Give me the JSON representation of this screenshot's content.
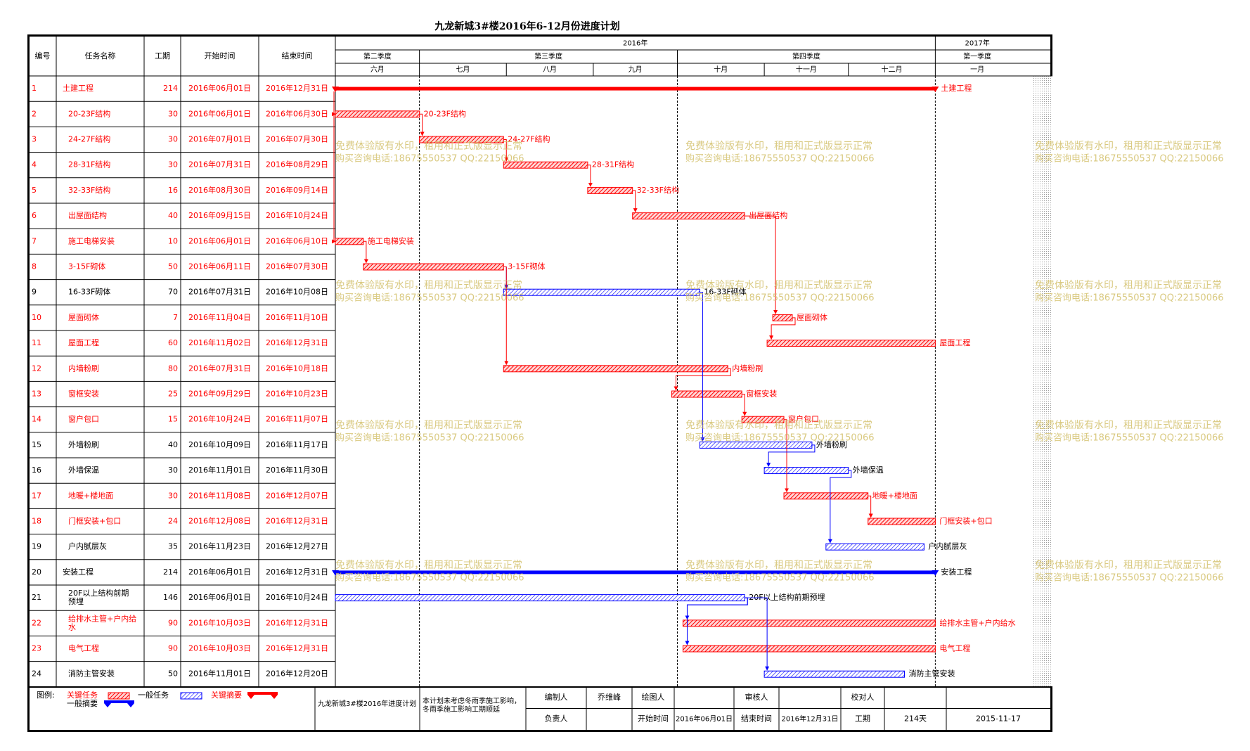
{
  "title": "九龙新城3#楼2016年6-12月份进度计划",
  "columns": {
    "id": "编号",
    "name": "任务名称",
    "duration": "工期",
    "start": "开始时间",
    "end": "结束时间"
  },
  "timeline": {
    "start": "2016-06-01",
    "end": "2017-01-31",
    "years": [
      {
        "label": "2016年",
        "from": "2016-06-01",
        "to": "2017-01-01"
      },
      {
        "label": "2017年",
        "from": "2017-01-01",
        "to": "2017-01-31"
      }
    ],
    "quarters": [
      {
        "label": "第二季度",
        "from": "2016-06-01",
        "to": "2016-07-01"
      },
      {
        "label": "第三季度",
        "from": "2016-07-01",
        "to": "2016-10-01"
      },
      {
        "label": "第四季度",
        "from": "2016-10-01",
        "to": "2017-01-01"
      },
      {
        "label": "第一季度",
        "from": "2017-01-01",
        "to": "2017-01-31"
      }
    ],
    "months": [
      {
        "label": "六月",
        "from": "2016-06-01",
        "to": "2016-07-01"
      },
      {
        "label": "七月",
        "from": "2016-07-01",
        "to": "2016-08-01"
      },
      {
        "label": "八月",
        "from": "2016-08-01",
        "to": "2016-09-01"
      },
      {
        "label": "九月",
        "from": "2016-09-01",
        "to": "2016-10-01"
      },
      {
        "label": "十月",
        "from": "2016-10-01",
        "to": "2016-11-01"
      },
      {
        "label": "十一月",
        "from": "2016-11-01",
        "to": "2016-12-01"
      },
      {
        "label": "十二月",
        "from": "2016-12-01",
        "to": "2017-01-01"
      },
      {
        "label": "一月",
        "from": "2017-01-01",
        "to": "2017-01-31"
      }
    ],
    "quarter_dividers": [
      "2016-07-01",
      "2016-10-01",
      "2017-01-01"
    ]
  },
  "tasks": [
    {
      "id": "1",
      "name": "土建工程",
      "duration": "214",
      "start": "2016年06月01日",
      "end": "2016年12月31日",
      "from": "2016-06-01",
      "to": "2016-12-31",
      "type": "summary",
      "critical": true,
      "indent": false,
      "bar_label": "土建工程"
    },
    {
      "id": "2",
      "name": "20-23F结构",
      "duration": "30",
      "start": "2016年06月01日",
      "end": "2016年06月30日",
      "from": "2016-06-01",
      "to": "2016-06-30",
      "type": "task",
      "critical": true,
      "indent": true,
      "bar_label": "20-23F结构"
    },
    {
      "id": "3",
      "name": "24-27F结构",
      "duration": "30",
      "start": "2016年07月01日",
      "end": "2016年07月30日",
      "from": "2016-07-01",
      "to": "2016-07-30",
      "type": "task",
      "critical": true,
      "indent": true,
      "bar_label": "24-27F结构"
    },
    {
      "id": "4",
      "name": "28-31F结构",
      "duration": "30",
      "start": "2016年07月31日",
      "end": "2016年08月29日",
      "from": "2016-07-31",
      "to": "2016-08-29",
      "type": "task",
      "critical": true,
      "indent": true,
      "bar_label": "28-31F结构"
    },
    {
      "id": "5",
      "name": "32-33F结构",
      "duration": "16",
      "start": "2016年08月30日",
      "end": "2016年09月14日",
      "from": "2016-08-30",
      "to": "2016-09-14",
      "type": "task",
      "critical": true,
      "indent": true,
      "bar_label": "32-33F结构"
    },
    {
      "id": "6",
      "name": "出屋面结构",
      "duration": "40",
      "start": "2016年09月15日",
      "end": "2016年10月24日",
      "from": "2016-09-15",
      "to": "2016-10-24",
      "type": "task",
      "critical": true,
      "indent": true,
      "bar_label": "出屋面结构"
    },
    {
      "id": "7",
      "name": "施工电梯安装",
      "duration": "10",
      "start": "2016年06月01日",
      "end": "2016年06月10日",
      "from": "2016-06-01",
      "to": "2016-06-10",
      "type": "task",
      "critical": true,
      "indent": true,
      "bar_label": "施工电梯安装"
    },
    {
      "id": "8",
      "name": "3-15F砌体",
      "duration": "50",
      "start": "2016年06月11日",
      "end": "2016年07月30日",
      "from": "2016-06-11",
      "to": "2016-07-30",
      "type": "task",
      "critical": true,
      "indent": true,
      "bar_label": "3-15F砌体"
    },
    {
      "id": "9",
      "name": "16-33F砌体",
      "duration": "70",
      "start": "2016年07月31日",
      "end": "2016年10月08日",
      "from": "2016-07-31",
      "to": "2016-10-08",
      "type": "task",
      "critical": false,
      "indent": true,
      "bar_label": "16-33F砌体"
    },
    {
      "id": "10",
      "name": "屋面砌体",
      "duration": "7",
      "start": "2016年11月04日",
      "end": "2016年11月10日",
      "from": "2016-11-04",
      "to": "2016-11-10",
      "type": "task",
      "critical": true,
      "indent": true,
      "bar_label": "屋面砌体"
    },
    {
      "id": "11",
      "name": "屋面工程",
      "duration": "60",
      "start": "2016年11月02日",
      "end": "2016年12月31日",
      "from": "2016-11-02",
      "to": "2016-12-31",
      "type": "task",
      "critical": true,
      "indent": true,
      "bar_label": "屋面工程"
    },
    {
      "id": "12",
      "name": "内墙粉刷",
      "duration": "80",
      "start": "2016年07月31日",
      "end": "2016年10月18日",
      "from": "2016-07-31",
      "to": "2016-10-18",
      "type": "task",
      "critical": true,
      "indent": true,
      "bar_label": "内墙粉刷"
    },
    {
      "id": "13",
      "name": "窗框安装",
      "duration": "25",
      "start": "2016年09月29日",
      "end": "2016年10月23日",
      "from": "2016-09-29",
      "to": "2016-10-23",
      "type": "task",
      "critical": true,
      "indent": true,
      "bar_label": "窗框安装"
    },
    {
      "id": "14",
      "name": "窗户包口",
      "duration": "15",
      "start": "2016年10月24日",
      "end": "2016年11月07日",
      "from": "2016-10-24",
      "to": "2016-11-07",
      "type": "task",
      "critical": true,
      "indent": true,
      "bar_label": "窗户包口"
    },
    {
      "id": "15",
      "name": "外墙粉刷",
      "duration": "40",
      "start": "2016年10月09日",
      "end": "2016年11月17日",
      "from": "2016-10-09",
      "to": "2016-11-17",
      "type": "task",
      "critical": false,
      "indent": true,
      "bar_label": "外墙粉刷"
    },
    {
      "id": "16",
      "name": "外墙保温",
      "duration": "30",
      "start": "2016年11月01日",
      "end": "2016年11月30日",
      "from": "2016-11-01",
      "to": "2016-11-30",
      "type": "task",
      "critical": false,
      "indent": true,
      "bar_label": "外墙保温"
    },
    {
      "id": "17",
      "name": "地暖+楼地面",
      "duration": "30",
      "start": "2016年11月08日",
      "end": "2016年12月07日",
      "from": "2016-11-08",
      "to": "2016-12-07",
      "type": "task",
      "critical": true,
      "indent": true,
      "bar_label": "地暖+楼地面"
    },
    {
      "id": "18",
      "name": "门框安装+包口",
      "duration": "24",
      "start": "2016年12月08日",
      "end": "2016年12月31日",
      "from": "2016-12-08",
      "to": "2016-12-31",
      "type": "task",
      "critical": true,
      "indent": true,
      "bar_label": "门框安装+包口"
    },
    {
      "id": "19",
      "name": "户内腻层灰",
      "duration": "35",
      "start": "2016年11月23日",
      "end": "2016年12月27日",
      "from": "2016-11-23",
      "to": "2016-12-27",
      "type": "task",
      "critical": false,
      "indent": true,
      "bar_label": "户内腻层灰"
    },
    {
      "id": "20",
      "name": "安装工程",
      "duration": "214",
      "start": "2016年06月01日",
      "end": "2016年12月31日",
      "from": "2016-06-01",
      "to": "2016-12-31",
      "type": "summary",
      "critical": false,
      "indent": false,
      "bar_label": "安装工程"
    },
    {
      "id": "21",
      "name": "20F以上结构前期预埋",
      "duration": "146",
      "start": "2016年06月01日",
      "end": "2016年10月24日",
      "from": "2016-06-01",
      "to": "2016-10-24",
      "type": "task",
      "critical": false,
      "indent": true,
      "bar_label": "20F以上结构前期预埋"
    },
    {
      "id": "22",
      "name": "给排水主管+户内给水",
      "duration": "90",
      "start": "2016年10月03日",
      "end": "2016年12月31日",
      "from": "2016-10-03",
      "to": "2016-12-31",
      "type": "task",
      "critical": true,
      "indent": true,
      "bar_label": "给排水主管+户内给水"
    },
    {
      "id": "23",
      "name": "电气工程",
      "duration": "90",
      "start": "2016年10月03日",
      "end": "2016年12月31日",
      "from": "2016-10-03",
      "to": "2016-12-31",
      "type": "task",
      "critical": true,
      "indent": true,
      "bar_label": "电气工程"
    },
    {
      "id": "24",
      "name": "消防主管安装",
      "duration": "50",
      "start": "2016年11月01日",
      "end": "2016年12月20日",
      "from": "2016-11-01",
      "to": "2016-12-20",
      "type": "task",
      "critical": false,
      "indent": true,
      "bar_label": "消防主管安装"
    }
  ],
  "links": [
    {
      "from": "1",
      "to": "2"
    },
    {
      "from": "2",
      "to": "3"
    },
    {
      "from": "3",
      "to": "4"
    },
    {
      "from": "4",
      "to": "5"
    },
    {
      "from": "1",
      "to": "7"
    },
    {
      "from": "7",
      "to": "8"
    },
    {
      "from": "8",
      "to": "9"
    },
    {
      "from": "8",
      "to": "12"
    },
    {
      "from": "6",
      "to": "10"
    },
    {
      "from": "10",
      "to": "11"
    },
    {
      "from": "12",
      "to": "13"
    },
    {
      "from": "13",
      "to": "14"
    },
    {
      "from": "9",
      "to": "15"
    },
    {
      "from": "14",
      "to": "17"
    },
    {
      "from": "15",
      "to": "16"
    },
    {
      "from": "17",
      "to": "18"
    },
    {
      "from": "16",
      "to": "19"
    },
    {
      "from": "5",
      "to": "6"
    },
    {
      "from": "21",
      "to": "22"
    },
    {
      "from": "21",
      "to": "23"
    },
    {
      "from": "21",
      "to": "24"
    }
  ],
  "watermark": {
    "line1": "免费体验版有水印，租用和正式版显示正常",
    "line2": "购买咨询电话:18675550537 QQ:22150066"
  },
  "legend": {
    "label": "图例:",
    "critical_task": "关键任务",
    "normal_task": "一般任务",
    "critical_summary": "关键摘要",
    "normal_summary": "一般摘要"
  },
  "footer": {
    "project": "九龙新城3#楼2016年进度计划",
    "note": "本计划未考虑冬雨季施工影响，冬雨季施工影响工期顺延",
    "editor_label": "编制人",
    "editor": "乔维峰",
    "drawer_label": "绘图人",
    "drawer": "",
    "reviewer_label": "审核人",
    "reviewer": "",
    "checker_label": "校对人",
    "checker": "",
    "owner_label": "负责人",
    "owner": "",
    "start_label": "开始时间",
    "start": "2016年06月01日",
    "end_label": "结束时间",
    "end": "2016年12月31日",
    "duration_label": "工期",
    "duration": "214天",
    "date": "2015-11-17"
  },
  "colors": {
    "critical": "#ff0000",
    "normal": "#0000ff",
    "critical_text": "#ff0000",
    "normal_text": "#000000",
    "watermark": "#d2bf6a",
    "grid": "#000000"
  }
}
